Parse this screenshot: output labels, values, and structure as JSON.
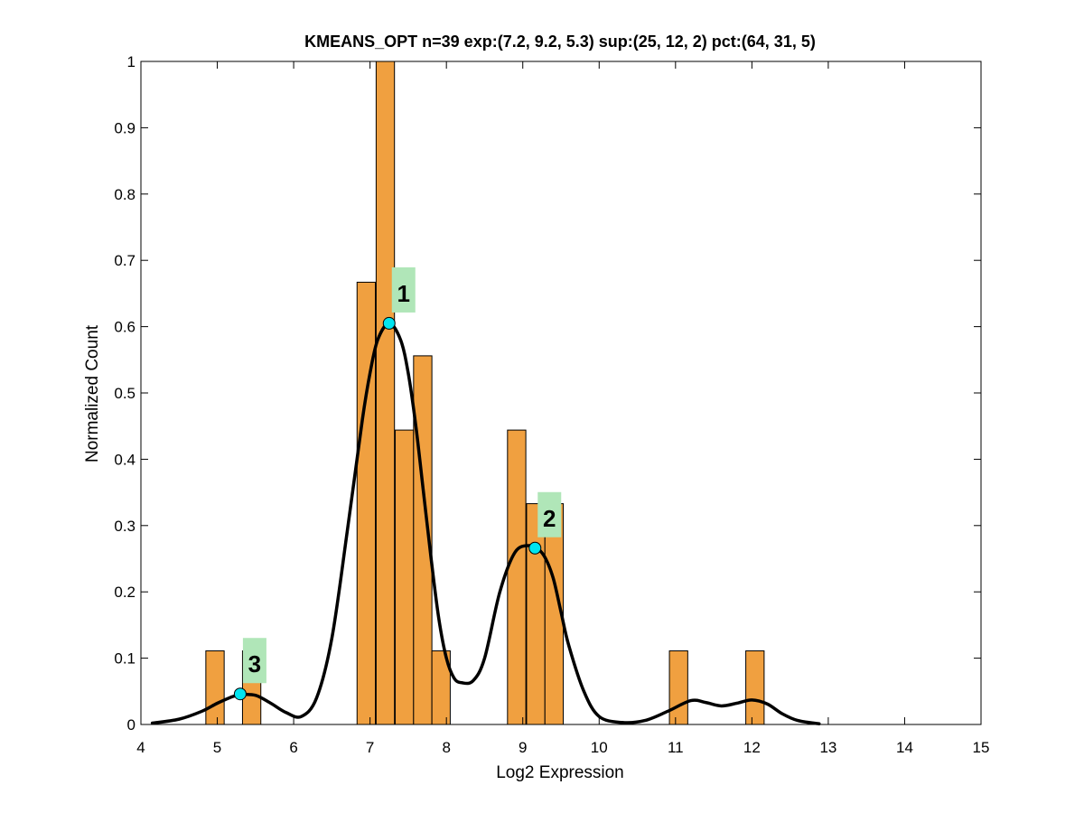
{
  "chart_data": {
    "type": "bar",
    "title": "KMEANS_OPT n=39 exp:(7.2, 9.2, 5.3) sup:(25, 12, 2) pct:(64, 31, 5)",
    "xlabel": "Log2 Expression",
    "ylabel": "Normalized Count",
    "xlim": [
      4,
      15
    ],
    "ylim": [
      0,
      1
    ],
    "xticks": [
      "4",
      "5",
      "6",
      "7",
      "8",
      "9",
      "10",
      "11",
      "12",
      "13",
      "14",
      "15"
    ],
    "yticks": [
      "0",
      "0.1",
      "0.2",
      "0.3",
      "0.4",
      "0.5",
      "0.6",
      "0.7",
      "0.8",
      "0.9",
      "1"
    ],
    "bar_width": 0.24,
    "bars": [
      {
        "x": 4.97,
        "value": 0.111
      },
      {
        "x": 5.45,
        "value": 0.111
      },
      {
        "x": 6.95,
        "value": 0.667
      },
      {
        "x": 7.2,
        "value": 1.0
      },
      {
        "x": 7.45,
        "value": 0.444
      },
      {
        "x": 7.69,
        "value": 0.556
      },
      {
        "x": 7.93,
        "value": 0.111
      },
      {
        "x": 8.92,
        "value": 0.444
      },
      {
        "x": 9.17,
        "value": 0.333
      },
      {
        "x": 9.41,
        "value": 0.333
      },
      {
        "x": 11.04,
        "value": 0.111
      },
      {
        "x": 12.04,
        "value": 0.111
      }
    ],
    "density_curve": {
      "x": [
        4.15,
        4.5,
        4.8,
        5.0,
        5.2,
        5.3,
        5.5,
        5.7,
        5.9,
        6.1,
        6.3,
        6.5,
        6.7,
        6.9,
        7.0,
        7.1,
        7.25,
        7.4,
        7.5,
        7.6,
        7.7,
        7.8,
        7.9,
        8.0,
        8.1,
        8.2,
        8.35,
        8.5,
        8.7,
        8.9,
        9.1,
        9.2,
        9.3,
        9.4,
        9.5,
        9.6,
        9.8,
        10.0,
        10.3,
        10.6,
        10.9,
        11.2,
        11.4,
        11.6,
        11.8,
        12.0,
        12.2,
        12.4,
        12.6,
        12.88
      ],
      "y": [
        0.002,
        0.008,
        0.02,
        0.032,
        0.042,
        0.045,
        0.044,
        0.032,
        0.018,
        0.012,
        0.04,
        0.13,
        0.29,
        0.46,
        0.53,
        0.58,
        0.605,
        0.58,
        0.53,
        0.45,
        0.35,
        0.25,
        0.16,
        0.1,
        0.07,
        0.063,
        0.066,
        0.1,
        0.2,
        0.26,
        0.27,
        0.265,
        0.25,
        0.22,
        0.17,
        0.12,
        0.05,
        0.012,
        0.003,
        0.006,
        0.02,
        0.036,
        0.033,
        0.028,
        0.032,
        0.037,
        0.031,
        0.016,
        0.006,
        0.001
      ],
      "color": "#000000"
    },
    "peaks": [
      {
        "label": "1",
        "x": 7.25,
        "y": 0.605
      },
      {
        "label": "2",
        "x": 9.16,
        "y": 0.266
      },
      {
        "label": "3",
        "x": 5.3,
        "y": 0.046
      }
    ],
    "colors": {
      "bar_fill": "#f0a040",
      "bar_edge": "#000000",
      "peak_marker": "#00e5f0",
      "peak_label_bg": "#b0e6b8"
    },
    "grid": false
  }
}
